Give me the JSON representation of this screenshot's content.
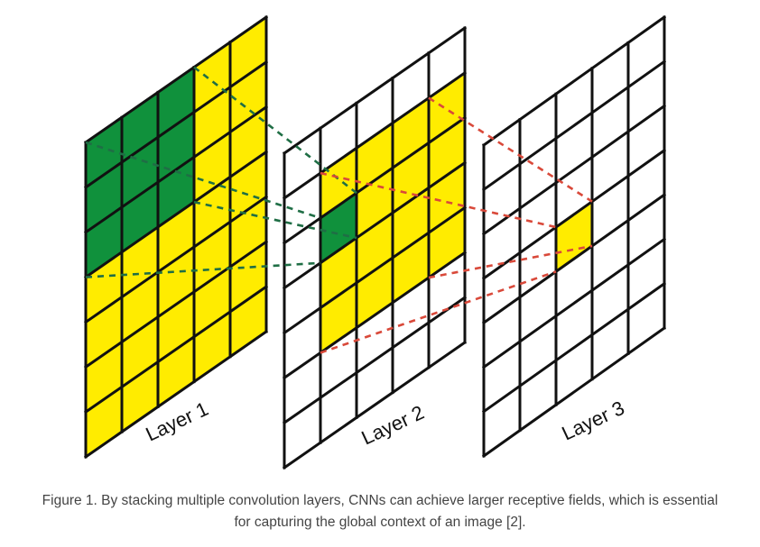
{
  "figure": {
    "layers": [
      {
        "label": "Layer 1",
        "rows": 7,
        "cols": 5,
        "highlights": [
          {
            "color": "#ffec00",
            "cells": "all"
          },
          {
            "color": "#10913c",
            "cells": [
              [
                0,
                0,
                3,
                3
              ]
            ]
          }
        ]
      },
      {
        "label": "Layer 2",
        "rows": 7,
        "cols": 5,
        "highlights": [
          {
            "color": "#ffec00",
            "cells": [
              [
                1,
                1,
                4,
                4
              ]
            ]
          },
          {
            "color": "#10913c",
            "cells": [
              [
                2,
                1,
                1,
                1
              ]
            ]
          }
        ]
      },
      {
        "label": "Layer 3",
        "rows": 7,
        "cols": 5,
        "highlights": [
          {
            "color": "#ffec00",
            "cells": [
              [
                3,
                2,
                1,
                1
              ]
            ]
          }
        ]
      }
    ],
    "colors": {
      "green": "#10913c",
      "yellow": "#ffec00",
      "green_dash": "#1f6e45",
      "red_dash": "#d9493a",
      "grid": "#111111"
    }
  },
  "caption": {
    "line1": "Figure 1. By stacking multiple convolution layers, CNNs can achieve larger receptive fields, which is essential",
    "line2": "for capturing the global context of an image [2]."
  }
}
